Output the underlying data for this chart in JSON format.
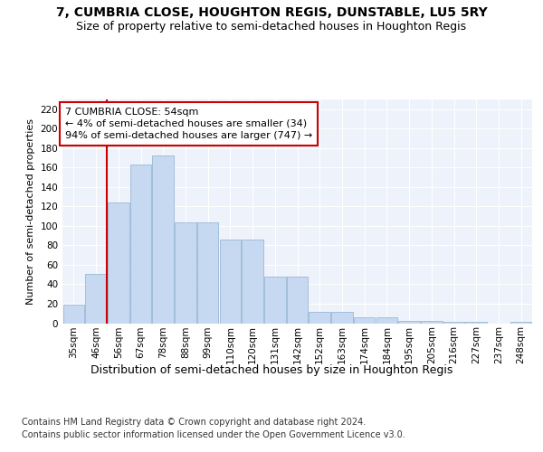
{
  "title1": "7, CUMBRIA CLOSE, HOUGHTON REGIS, DUNSTABLE, LU5 5RY",
  "title2": "Size of property relative to semi-detached houses in Houghton Regis",
  "xlabel": "Distribution of semi-detached houses by size in Houghton Regis",
  "ylabel": "Number of semi-detached properties",
  "footnote1": "Contains HM Land Registry data © Crown copyright and database right 2024.",
  "footnote2": "Contains public sector information licensed under the Open Government Licence v3.0.",
  "annotation_title": "7 CUMBRIA CLOSE: 54sqm",
  "annotation_line1": "← 4% of semi-detached houses are smaller (34)",
  "annotation_line2": "94% of semi-detached houses are larger (747) →",
  "bar_labels": [
    "35sqm",
    "46sqm",
    "56sqm",
    "67sqm",
    "78sqm",
    "88sqm",
    "99sqm",
    "110sqm",
    "120sqm",
    "131sqm",
    "142sqm",
    "152sqm",
    "163sqm",
    "174sqm",
    "184sqm",
    "195sqm",
    "205sqm",
    "216sqm",
    "227sqm",
    "237sqm",
    "248sqm"
  ],
  "bar_values": [
    19,
    51,
    124,
    163,
    172,
    104,
    104,
    86,
    86,
    48,
    48,
    12,
    12,
    6,
    6,
    2,
    2,
    1,
    1,
    0,
    1
  ],
  "bar_color": "#c6d9f0",
  "bar_edge_color": "#9ab8d8",
  "vline_color": "#cc0000",
  "vline_bar_index": 1,
  "background_color": "#eef2fa",
  "grid_color": "#ffffff",
  "ylim": [
    0,
    230
  ],
  "yticks": [
    0,
    20,
    40,
    60,
    80,
    100,
    120,
    140,
    160,
    180,
    200,
    220
  ],
  "title1_fontsize": 10,
  "title2_fontsize": 9,
  "xlabel_fontsize": 9,
  "ylabel_fontsize": 8,
  "tick_fontsize": 7.5,
  "annotation_fontsize": 8,
  "footnote_fontsize": 7
}
